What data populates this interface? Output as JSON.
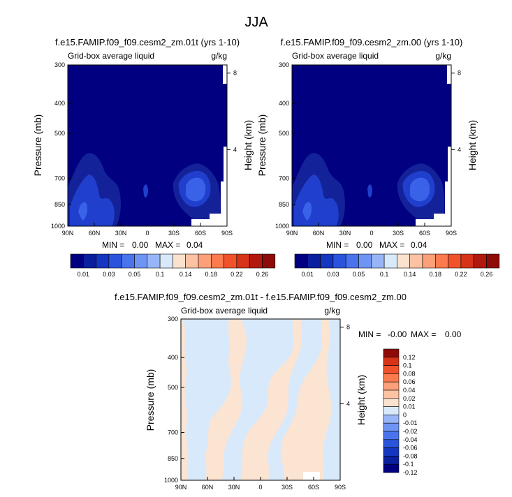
{
  "figure": {
    "title": "JJA"
  },
  "palettes": {
    "sequential": [
      "#000080",
      "#0a1f9e",
      "#1436c0",
      "#2a54dc",
      "#4a74ee",
      "#6e94f4",
      "#98b6f7",
      "#d8e9fb",
      "#fbe2cf",
      "#fcc2a1",
      "#fca07a",
      "#fb7a4e",
      "#f1522b",
      "#d73318",
      "#b3180d",
      "#8e0b07"
    ],
    "diverging": [
      "#000080",
      "#0a1f9e",
      "#1436c0",
      "#2a54dc",
      "#4a74ee",
      "#6e94f4",
      "#98b6f7",
      "#d8e9fb",
      "#fbe2cf",
      "#fcc2a1",
      "#fca07a",
      "#fb7a4e",
      "#f1522b",
      "#d73318",
      "#8e0b07"
    ]
  },
  "chart_data": [
    {
      "type": "heatmap",
      "title": "f.e15.FAMIP.f09_f09.cesm2_zm.01t (yrs 1-10)",
      "left_label": "Grid-box average liquid",
      "right_label": "g/kg",
      "xlabel": "",
      "ylabel": "Pressure (mb)",
      "y2label": "Height (km)",
      "x_ticks": [
        "90N",
        "60N",
        "30N",
        "0",
        "30S",
        "60S",
        "90S"
      ],
      "y_ticks": [
        300,
        400,
        500,
        700,
        850,
        1000
      ],
      "y2_ticks": [
        8,
        4
      ],
      "ylim": [
        1000,
        300
      ],
      "y_scale": "log",
      "min_label": "MIN =",
      "min_value": "0.00",
      "max_label": "MAX =",
      "max_value": "0.04",
      "colorbar_labels": [
        "0.01",
        "0.03",
        "0.05",
        "0.1",
        "0.14",
        "0.18",
        "0.22",
        "0.26"
      ]
    },
    {
      "type": "heatmap",
      "title": "f.e15.FAMIP.f09_f09.cesm2_zm.00 (yrs 1-10)",
      "left_label": "Grid-box average liquid",
      "right_label": "g/kg",
      "xlabel": "",
      "ylabel": "Pressure (mb)",
      "y2label": "Height (km)",
      "x_ticks": [
        "90N",
        "60N",
        "30N",
        "0",
        "30S",
        "60S",
        "90S"
      ],
      "y_ticks": [
        300,
        400,
        500,
        700,
        850,
        1000
      ],
      "y2_ticks": [
        8,
        4
      ],
      "ylim": [
        1000,
        300
      ],
      "y_scale": "log",
      "min_label": "MIN =",
      "min_value": "0.00",
      "max_label": "MAX =",
      "max_value": "0.04",
      "colorbar_labels": [
        "0.01",
        "0.03",
        "0.05",
        "0.1",
        "0.14",
        "0.18",
        "0.22",
        "0.26"
      ]
    },
    {
      "type": "heatmap",
      "title": "f.e15.FAMIP.f09_f09.cesm2_zm.01t - f.e15.FAMIP.f09_f09.cesm2_zm.00",
      "left_label": "Grid-box average liquid",
      "right_label": "g/kg",
      "xlabel": "",
      "ylabel": "Pressure (mb)",
      "y2label": "Height (km)",
      "x_ticks": [
        "90N",
        "60N",
        "30N",
        "0",
        "30S",
        "60S",
        "90S"
      ],
      "y_ticks": [
        300,
        400,
        500,
        700,
        850,
        1000
      ],
      "y2_ticks": [
        8,
        4
      ],
      "ylim": [
        1000,
        300
      ],
      "y_scale": "log",
      "min_label": "MIN =",
      "min_value": "-0.00",
      "max_label": "MAX =",
      "max_value": "0.00",
      "colorbar_labels": [
        "0.12",
        "0.1",
        "0.08",
        "0.06",
        "0.04",
        "0.02",
        "0.01",
        "0",
        "-0.01",
        "-0.02",
        "-0.04",
        "-0.06",
        "-0.08",
        "-0.1",
        "-0.12"
      ]
    }
  ]
}
